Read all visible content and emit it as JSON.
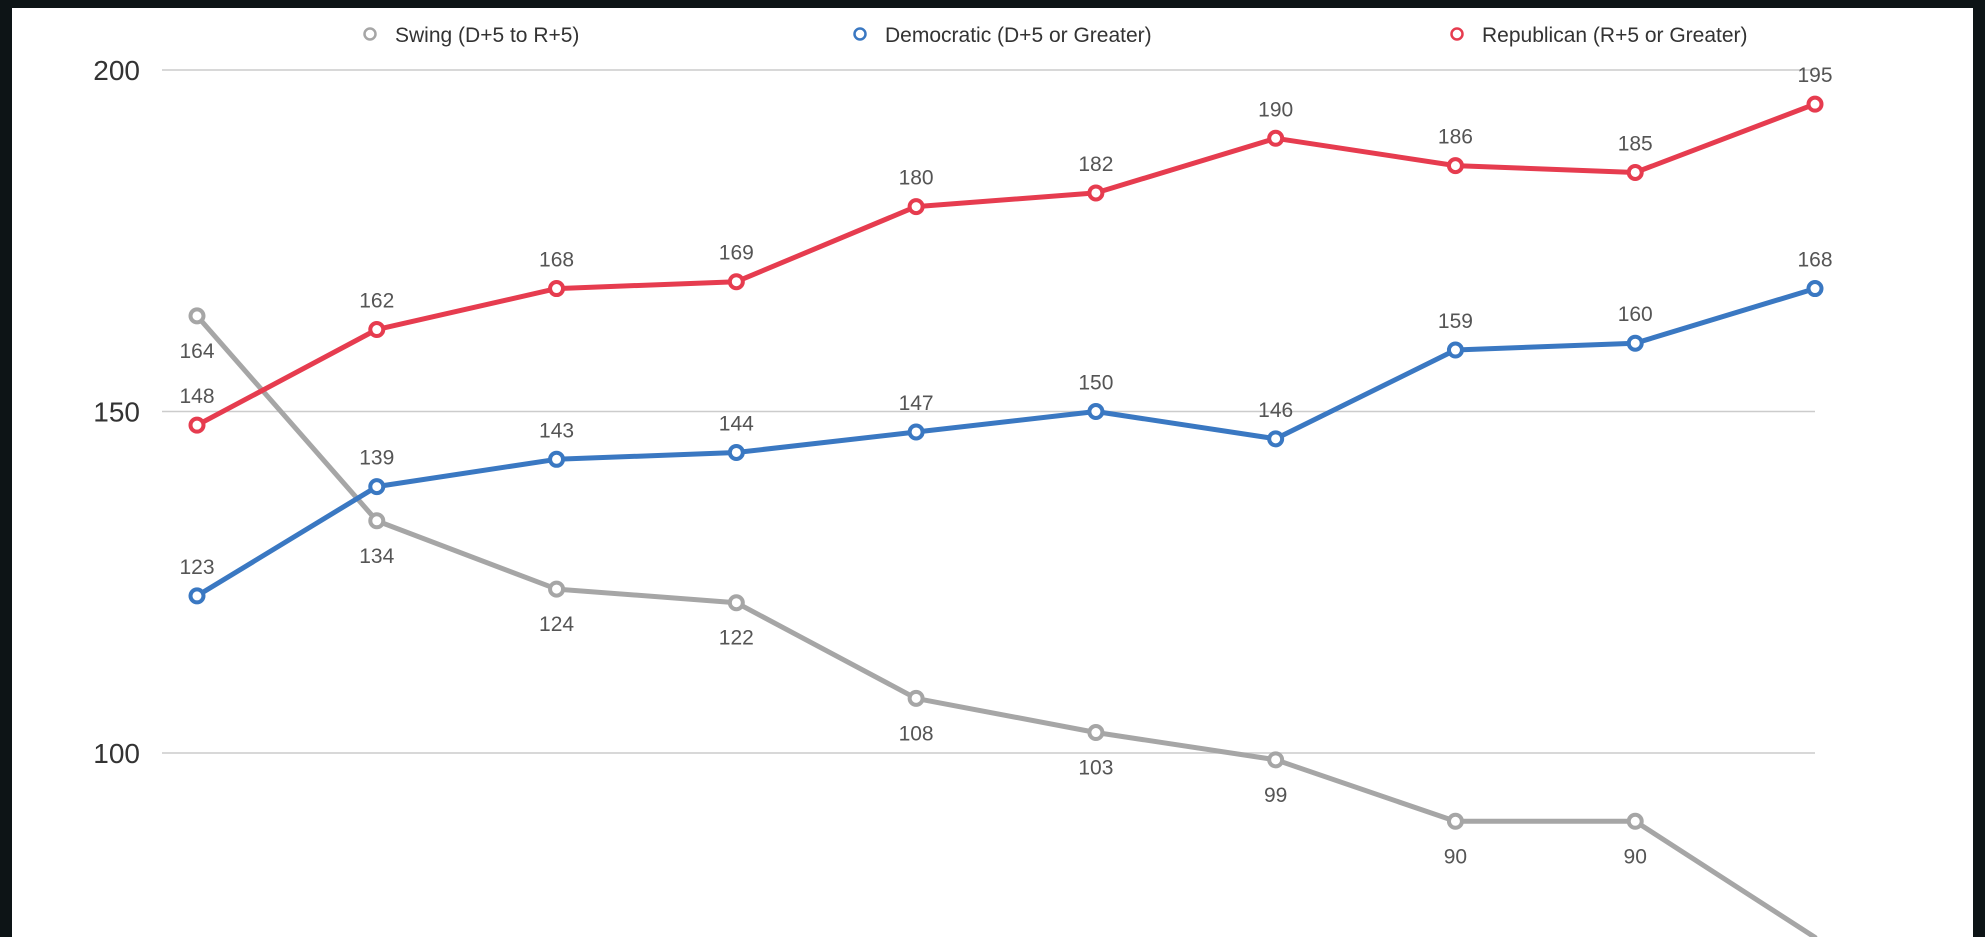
{
  "chart_data": {
    "type": "line",
    "title": "",
    "xlabel": "",
    "ylabel": "",
    "x": [
      1,
      2,
      3,
      4,
      5,
      6,
      7,
      8,
      9,
      10
    ],
    "yticks": [
      {
        "value": 100,
        "label": "100"
      },
      {
        "value": 150,
        "label": "150"
      },
      {
        "value": 200,
        "label": "200"
      }
    ],
    "ylim": [
      78,
      200
    ],
    "grid": true,
    "legend_position": "top",
    "series": [
      {
        "key": "swing",
        "name": "Swing (D+5 to R+5)",
        "color": "#a6a6a6",
        "values": [
          164,
          134,
          124,
          122,
          108,
          103,
          99,
          90,
          90,
          73
        ],
        "labels": [
          "164",
          "134",
          "124",
          "122",
          "108",
          "103",
          "99",
          "90",
          "90",
          ""
        ],
        "label_side": [
          "below",
          "below",
          "below",
          "below",
          "below",
          "below",
          "below",
          "below",
          "below",
          "below"
        ]
      },
      {
        "key": "democratic",
        "name": "Democratic (D+5 or Greater)",
        "color": "#3a78c2",
        "values": [
          123,
          139,
          143,
          144,
          147,
          150,
          146,
          159,
          160,
          168
        ],
        "labels": [
          "123",
          "139",
          "143",
          "144",
          "147",
          "150",
          "146",
          "159",
          "160",
          "168"
        ],
        "label_side": [
          "above",
          "above",
          "above",
          "above",
          "above",
          "above",
          "above",
          "above",
          "above",
          "above"
        ]
      },
      {
        "key": "republican",
        "name": "Republican (R+5 or Greater)",
        "color": "#e63c4f",
        "values": [
          148,
          162,
          168,
          169,
          180,
          182,
          190,
          186,
          185,
          195
        ],
        "labels": [
          "148",
          "162",
          "168",
          "169",
          "180",
          "182",
          "190",
          "186",
          "185",
          "195"
        ],
        "label_side": [
          "above",
          "above",
          "above",
          "above",
          "above",
          "above",
          "above",
          "above",
          "above",
          "above"
        ]
      }
    ]
  }
}
